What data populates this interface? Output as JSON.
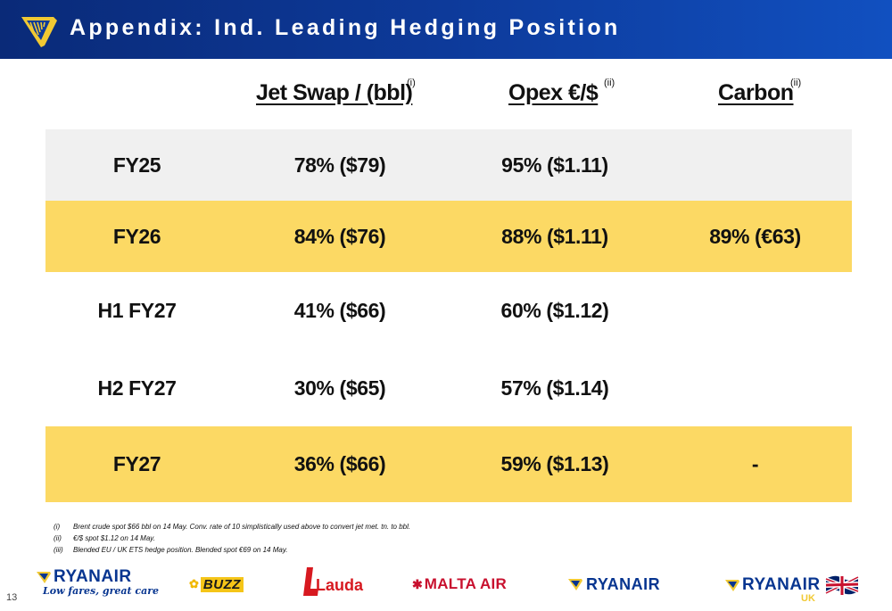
{
  "header": {
    "title": "Appendix: Ind. Leading Hedging Position"
  },
  "columns": [
    {
      "label": "Jet Swap / (bbl)",
      "note": "(i)"
    },
    {
      "label": "Opex €/$",
      "note": "(ii)"
    },
    {
      "label": "Carbon",
      "note": "(ii)"
    }
  ],
  "rows": [
    {
      "period": "FY25",
      "jet": "78% ($79)",
      "opex": "95% ($1.11)",
      "carbon": ""
    },
    {
      "period": "FY26",
      "jet": "84% ($76)",
      "opex": "88% ($1.11)",
      "carbon": "89% (€63)"
    },
    {
      "period": "H1 FY27",
      "jet": "41% ($66)",
      "opex": "60% ($1.12)",
      "carbon": ""
    },
    {
      "period": "H2 FY27",
      "jet": "30% ($65)",
      "opex": "57% ($1.14)",
      "carbon": ""
    },
    {
      "period": "FY27",
      "jet": "36% ($66)",
      "opex": "59% ($1.13)",
      "carbon": "-"
    }
  ],
  "footnotes": [
    {
      "mark": "(i)",
      "text": "Brent crude spot $66 bbl on 14 May. Conv. rate of 10 simplistically used above to convert jet met. tn. to bbl."
    },
    {
      "mark": "(ii)",
      "text": "€/$ spot $1.12 on 14 May."
    },
    {
      "mark": "(iii)",
      "text": "Blended EU / UK ETS hedge position. Blended spot €69 on 14 May."
    }
  ],
  "brands": {
    "ryanair": "RYANAIR",
    "ryanair_tagline": "Low fares, great care",
    "buzz": "BUZZ",
    "lauda": "Lauda",
    "malta": "MALTA AIR",
    "ryanair2": "RYANAIR",
    "ryanair_uk": "RYANAIR",
    "uk_suffix": "UK"
  },
  "page_number": "13",
  "colors": {
    "header_blue": "#0d3a9a",
    "row_grey": "#f0f0f0",
    "row_yellow": "#fcd964",
    "brand_blue": "#073590",
    "brand_yellow": "#f1c933",
    "lauda_red": "#d71920",
    "malta_red": "#c8102e"
  }
}
